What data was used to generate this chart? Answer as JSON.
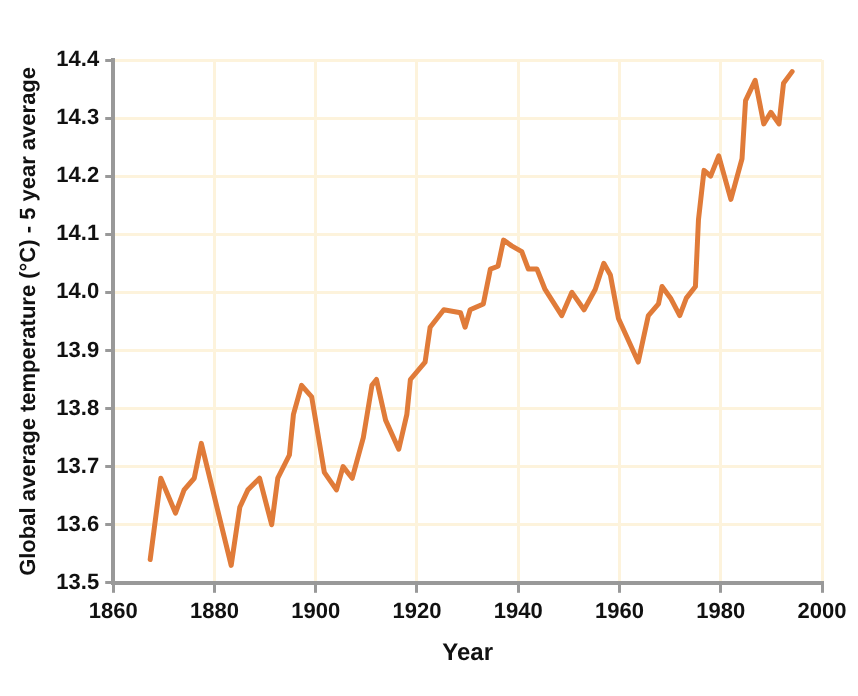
{
  "chart_data": {
    "type": "line",
    "xlabel": "Year",
    "ylabel": "Global average temperature (°C) - 5 year average",
    "x": [
      1867.3,
      1869.4,
      1872.3,
      1874,
      1876,
      1877.4,
      1883.3,
      1885,
      1886.6,
      1888.9,
      1891.3,
      1892.5,
      1894.8,
      1895.6,
      1897.2,
      1899.2,
      1901.7,
      1904.1,
      1905.4,
      1907.2,
      1909.4,
      1911.1,
      1912,
      1913.8,
      1916.4,
      1918,
      1918.7,
      1921.6,
      1922.6,
      1925.3,
      1928.6,
      1929.5,
      1930.5,
      1933.1,
      1934.5,
      1936,
      1937.1,
      1938.7,
      1940.7,
      1942,
      1943.7,
      1945.3,
      1948.6,
      1950.6,
      1953,
      1955.2,
      1956.9,
      1958.2,
      1959.8,
      1963.7,
      1965.7,
      1967.7,
      1968.4,
      1970.1,
      1971.9,
      1973.2,
      1975,
      1975.6,
      1976.7,
      1978,
      1979.6,
      1982,
      1984.2,
      1984.9,
      1986.8,
      1988.5,
      1989.9,
      1991.5,
      1992.4,
      1994.1
    ],
    "series": [
      {
        "color": "#e07b39",
        "values": [
          13.54,
          13.68,
          13.62,
          13.66,
          13.68,
          13.74,
          13.53,
          13.63,
          13.66,
          13.68,
          13.6,
          13.68,
          13.72,
          13.79,
          13.84,
          13.82,
          13.69,
          13.66,
          13.7,
          13.68,
          13.75,
          13.84,
          13.85,
          13.78,
          13.73,
          13.79,
          13.85,
          13.88,
          13.94,
          13.97,
          13.965,
          13.94,
          13.97,
          13.98,
          14.04,
          14.045,
          14.09,
          14.08,
          14.07,
          14.04,
          14.04,
          14.005,
          13.96,
          14.0,
          13.97,
          14.005,
          14.05,
          14.03,
          13.955,
          13.88,
          13.96,
          13.98,
          14.01,
          13.99,
          13.96,
          13.99,
          14.01,
          14.125,
          14.21,
          14.2,
          14.235,
          14.16,
          14.23,
          14.33,
          14.365,
          14.29,
          14.31,
          14.29,
          14.36,
          14.38
        ]
      }
    ],
    "xlim": [
      1860,
      2000
    ],
    "xticks": [
      1860,
      1880,
      1900,
      1920,
      1940,
      1960,
      1980,
      2000
    ],
    "ylim": [
      13.5,
      14.4
    ],
    "yticks": [
      13.5,
      13.6,
      13.7,
      13.8,
      13.9,
      {
        "value": 14.0,
        "label": "14.0"
      },
      14.1,
      14.2,
      14.3,
      14.4
    ],
    "grid": true,
    "marker": "none",
    "line_style": "solid",
    "legend": false
  }
}
